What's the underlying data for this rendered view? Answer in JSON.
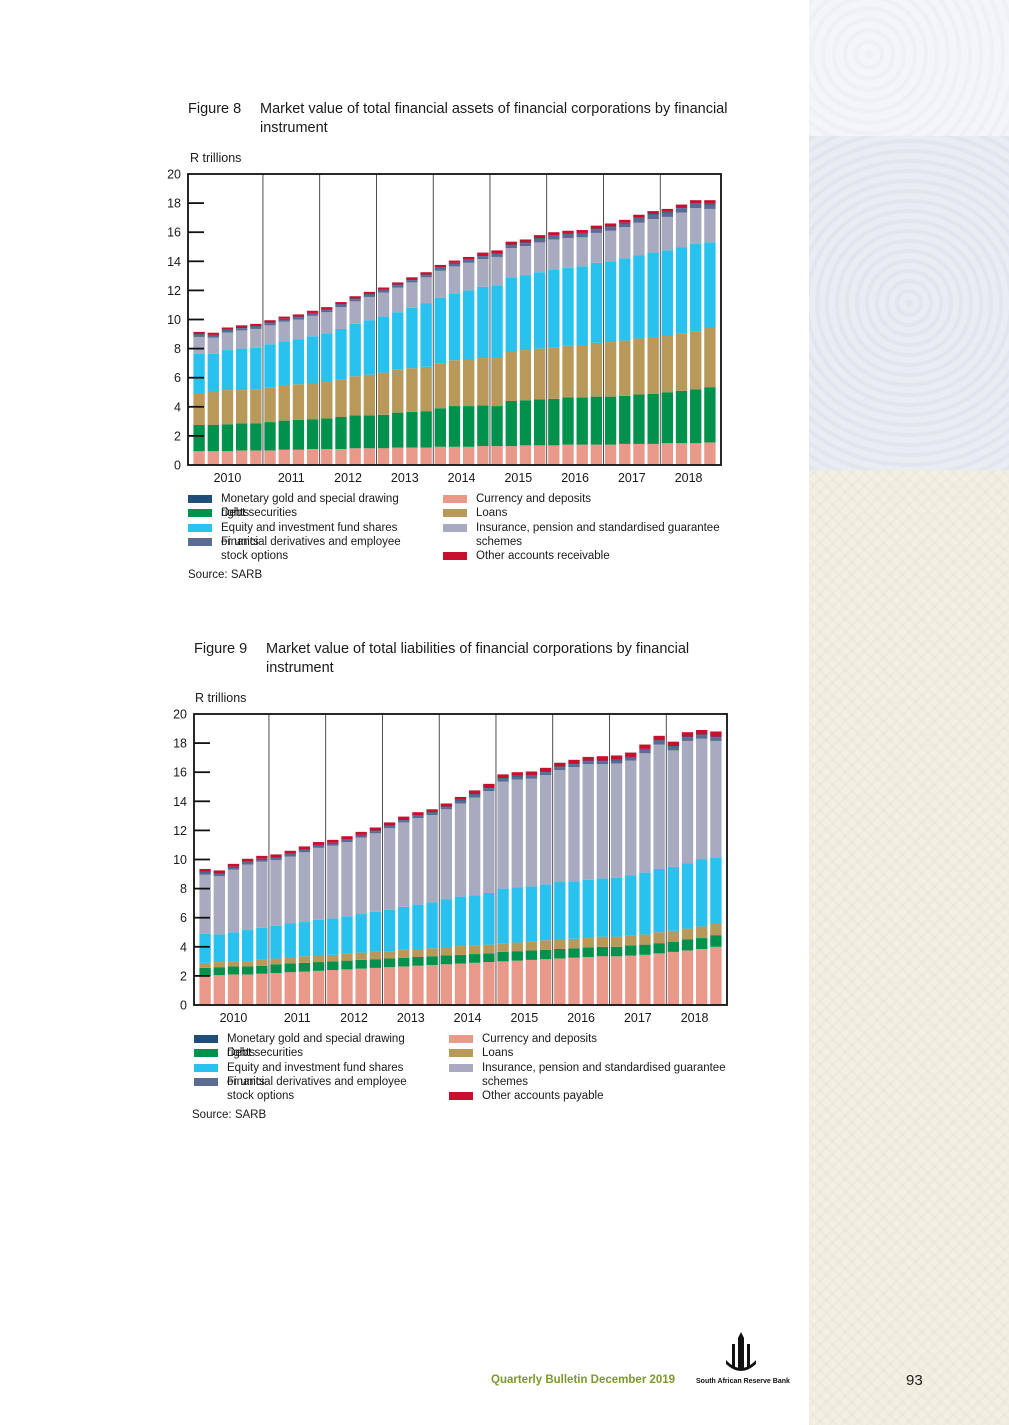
{
  "colors": {
    "monetary_gold": "#1f4e79",
    "debt": "#00914c",
    "equity": "#29c2ee",
    "derivatives": "#5b6b94",
    "currency": "#e8998a",
    "loans": "#b8995a",
    "insurance": "#a8aabf",
    "other": "#c8102e"
  },
  "chart_data": [
    {
      "type": "bar",
      "stacked": true,
      "title": "Market value of total financial assets of financial corporations by financial instrument",
      "figure_label": "Figure 8",
      "ylabel": "R trillions",
      "ylim": [
        0,
        20
      ],
      "yticks": [
        "0",
        "2",
        "4",
        "6",
        "8",
        "10",
        "12",
        "14",
        "16",
        "18",
        "20"
      ],
      "x_tick_labels": [
        "2010",
        "2011",
        "2012",
        "2013",
        "2014",
        "2015",
        "2016",
        "2017",
        "2018"
      ],
      "bars_per_year": 4,
      "legend": [
        {
          "label": "Monetary gold and special drawing rights",
          "color_key": "monetary_gold"
        },
        {
          "label": "Debt securities",
          "color_key": "debt"
        },
        {
          "label": "Equity and investment fund shares or units",
          "color_key": "equity"
        },
        {
          "label": "Financial  derivatives and employee stock options",
          "color_key": "derivatives"
        },
        {
          "label": "Currency and deposits",
          "color_key": "currency"
        },
        {
          "label": "Loans",
          "color_key": "loans"
        },
        {
          "label": "Insurance, pension and standardised guarantee schemes",
          "color_key": "insurance"
        },
        {
          "label": "Other accounts receivable",
          "color_key": "other"
        }
      ],
      "stack_order": [
        "currency",
        "debt",
        "loans",
        "equity",
        "insurance",
        "derivatives",
        "monetary_gold",
        "other"
      ],
      "series": [
        {
          "name": "Currency and deposits",
          "color_key": "currency",
          "values": [
            0.95,
            0.95,
            0.95,
            1.0,
            1.0,
            1.0,
            1.05,
            1.05,
            1.1,
            1.1,
            1.1,
            1.15,
            1.15,
            1.15,
            1.2,
            1.2,
            1.2,
            1.25,
            1.25,
            1.25,
            1.3,
            1.3,
            1.3,
            1.35,
            1.35,
            1.35,
            1.4,
            1.4,
            1.4,
            1.4,
            1.45,
            1.45,
            1.45,
            1.5,
            1.5,
            1.5,
            1.55
          ]
        },
        {
          "name": "Debt securities",
          "color_key": "debt",
          "values": [
            1.8,
            1.8,
            1.85,
            1.85,
            1.85,
            1.95,
            2.0,
            2.05,
            2.05,
            2.1,
            2.2,
            2.25,
            2.25,
            2.3,
            2.4,
            2.45,
            2.5,
            2.65,
            2.8,
            2.8,
            2.8,
            2.75,
            3.1,
            3.1,
            3.15,
            3.2,
            3.25,
            3.25,
            3.3,
            3.3,
            3.3,
            3.4,
            3.45,
            3.5,
            3.6,
            3.7,
            3.8
          ]
        },
        {
          "name": "Loans",
          "color_key": "loans",
          "values": [
            2.2,
            2.3,
            2.35,
            2.3,
            2.35,
            2.4,
            2.45,
            2.45,
            2.45,
            2.5,
            2.6,
            2.7,
            2.8,
            2.9,
            2.95,
            3.0,
            3.05,
            3.1,
            3.15,
            3.2,
            3.25,
            3.3,
            3.4,
            3.45,
            3.5,
            3.55,
            3.55,
            3.6,
            3.7,
            3.75,
            3.8,
            3.85,
            3.9,
            3.9,
            3.95,
            4.0,
            4.1
          ]
        },
        {
          "name": "Equity and investment fund shares or units",
          "color_key": "equity",
          "values": [
            2.7,
            2.6,
            2.75,
            2.85,
            2.85,
            2.95,
            3.0,
            3.1,
            3.25,
            3.35,
            3.45,
            3.6,
            3.75,
            3.85,
            3.95,
            4.15,
            4.35,
            4.5,
            4.6,
            4.75,
            4.9,
            5.0,
            5.1,
            5.15,
            5.25,
            5.35,
            5.35,
            5.4,
            5.5,
            5.55,
            5.65,
            5.7,
            5.8,
            5.85,
            5.9,
            6.0,
            5.85
          ]
        },
        {
          "name": "Insurance, pension and standardised guarantee schemes",
          "color_key": "insurance",
          "values": [
            1.15,
            1.1,
            1.2,
            1.25,
            1.3,
            1.3,
            1.35,
            1.35,
            1.4,
            1.45,
            1.5,
            1.55,
            1.6,
            1.65,
            1.7,
            1.75,
            1.8,
            1.85,
            1.85,
            1.9,
            1.9,
            1.95,
            2.0,
            2.0,
            2.05,
            2.05,
            2.05,
            2.0,
            2.05,
            2.1,
            2.15,
            2.25,
            2.3,
            2.3,
            2.4,
            2.45,
            2.3
          ]
        },
        {
          "name": "Financial  derivatives and employee stock options",
          "color_key": "derivatives",
          "values": [
            0.15,
            0.14,
            0.15,
            0.15,
            0.15,
            0.15,
            0.15,
            0.15,
            0.15,
            0.15,
            0.15,
            0.15,
            0.15,
            0.15,
            0.15,
            0.15,
            0.15,
            0.2,
            0.2,
            0.2,
            0.2,
            0.2,
            0.2,
            0.2,
            0.25,
            0.25,
            0.25,
            0.25,
            0.25,
            0.25,
            0.25,
            0.3,
            0.3,
            0.3,
            0.3,
            0.3,
            0.3
          ]
        },
        {
          "name": "Monetary gold and special drawing rights",
          "color_key": "monetary_gold",
          "values": [
            0.05,
            0.05,
            0.05,
            0.05,
            0.05,
            0.05,
            0.05,
            0.05,
            0.05,
            0.05,
            0.05,
            0.05,
            0.05,
            0.05,
            0.05,
            0.05,
            0.05,
            0.05,
            0.05,
            0.05,
            0.05,
            0.05,
            0.05,
            0.05,
            0.05,
            0.05,
            0.05,
            0.05,
            0.05,
            0.05,
            0.05,
            0.05,
            0.05,
            0.05,
            0.05,
            0.05,
            0.05
          ]
        },
        {
          "name": "Other accounts receivable",
          "color_key": "other",
          "values": [
            0.15,
            0.15,
            0.15,
            0.15,
            0.15,
            0.15,
            0.15,
            0.15,
            0.15,
            0.15,
            0.15,
            0.15,
            0.15,
            0.15,
            0.15,
            0.15,
            0.15,
            0.15,
            0.15,
            0.15,
            0.2,
            0.2,
            0.2,
            0.2,
            0.2,
            0.2,
            0.2,
            0.2,
            0.2,
            0.2,
            0.2,
            0.2,
            0.2,
            0.2,
            0.2,
            0.2,
            0.25
          ]
        }
      ],
      "source": "Source:  SARB"
    },
    {
      "type": "bar",
      "stacked": true,
      "title": "Market value of total liabilities of financial corporations by financial instrument",
      "figure_label": "Figure 9",
      "ylabel": "R trillions",
      "ylim": [
        0,
        20
      ],
      "yticks": [
        "0",
        "2",
        "4",
        "6",
        "8",
        "10",
        "12",
        "14",
        "16",
        "18",
        "20"
      ],
      "x_tick_labels": [
        "2010",
        "2011",
        "2012",
        "2013",
        "2014",
        "2015",
        "2016",
        "2017",
        "2018"
      ],
      "bars_per_year": 4,
      "legend": [
        {
          "label": "Monetary gold and special drawing rights",
          "color_key": "monetary_gold"
        },
        {
          "label": "Debt securities",
          "color_key": "debt"
        },
        {
          "label": "Equity and investment fund shares or units",
          "color_key": "equity"
        },
        {
          "label": "Financial  derivatives and employee stock options",
          "color_key": "derivatives"
        },
        {
          "label": "Currency and deposits",
          "color_key": "currency"
        },
        {
          "label": "Loans",
          "color_key": "loans"
        },
        {
          "label": "Insurance, pension and standardised guarantee schemes",
          "color_key": "insurance"
        },
        {
          "label": "Other accounts payable",
          "color_key": "other"
        }
      ],
      "stack_order": [
        "currency",
        "debt",
        "loans",
        "equity",
        "insurance",
        "derivatives",
        "monetary_gold",
        "other"
      ],
      "series": [
        {
          "name": "Currency and deposits",
          "color_key": "currency",
          "values": [
            2.0,
            2.05,
            2.1,
            2.1,
            2.15,
            2.2,
            2.25,
            2.3,
            2.35,
            2.4,
            2.45,
            2.5,
            2.55,
            2.6,
            2.65,
            2.7,
            2.75,
            2.8,
            2.85,
            2.9,
            2.95,
            3.0,
            3.05,
            3.1,
            3.15,
            3.2,
            3.25,
            3.3,
            3.35,
            3.35,
            3.4,
            3.45,
            3.55,
            3.65,
            3.75,
            3.85,
            4.0
          ]
        },
        {
          "name": "Debt securities",
          "color_key": "debt",
          "values": [
            0.55,
            0.55,
            0.55,
            0.55,
            0.55,
            0.6,
            0.6,
            0.6,
            0.6,
            0.6,
            0.6,
            0.6,
            0.6,
            0.6,
            0.6,
            0.6,
            0.6,
            0.6,
            0.6,
            0.6,
            0.6,
            0.65,
            0.65,
            0.65,
            0.65,
            0.65,
            0.65,
            0.65,
            0.65,
            0.65,
            0.7,
            0.7,
            0.7,
            0.7,
            0.75,
            0.75,
            0.8
          ]
        },
        {
          "name": "Loans",
          "color_key": "loans",
          "values": [
            0.35,
            0.35,
            0.35,
            0.35,
            0.4,
            0.4,
            0.45,
            0.45,
            0.45,
            0.45,
            0.5,
            0.5,
            0.5,
            0.5,
            0.55,
            0.55,
            0.55,
            0.55,
            0.6,
            0.6,
            0.6,
            0.6,
            0.6,
            0.6,
            0.65,
            0.65,
            0.65,
            0.65,
            0.7,
            0.7,
            0.7,
            0.7,
            0.75,
            0.75,
            0.75,
            0.8,
            0.8
          ]
        },
        {
          "name": "Equity and investment fund shares or units",
          "color_key": "equity",
          "values": [
            2.0,
            1.9,
            2.0,
            2.15,
            2.2,
            2.25,
            2.3,
            2.35,
            2.45,
            2.5,
            2.55,
            2.65,
            2.75,
            2.85,
            2.95,
            3.05,
            3.15,
            3.3,
            3.4,
            3.45,
            3.55,
            3.75,
            3.8,
            3.8,
            3.85,
            3.95,
            3.95,
            4.0,
            4.0,
            4.05,
            4.1,
            4.25,
            4.35,
            4.4,
            4.5,
            4.6,
            4.55
          ]
        },
        {
          "name": "Insurance, pension and standardised guarantee schemes",
          "color_key": "insurance",
          "values": [
            4.05,
            4.0,
            4.3,
            4.5,
            4.55,
            4.5,
            4.6,
            4.8,
            4.95,
            5.0,
            5.1,
            5.25,
            5.4,
            5.6,
            5.8,
            5.95,
            6.0,
            6.2,
            6.4,
            6.7,
            7.0,
            7.35,
            7.4,
            7.4,
            7.5,
            7.7,
            7.85,
            7.95,
            7.85,
            7.85,
            7.9,
            8.2,
            8.55,
            8.0,
            8.4,
            8.3,
            8.0
          ]
        },
        {
          "name": "Financial  derivatives and employee stock options",
          "color_key": "derivatives",
          "values": [
            0.15,
            0.15,
            0.15,
            0.15,
            0.15,
            0.15,
            0.15,
            0.15,
            0.15,
            0.15,
            0.15,
            0.15,
            0.15,
            0.15,
            0.15,
            0.15,
            0.15,
            0.15,
            0.2,
            0.2,
            0.2,
            0.2,
            0.2,
            0.2,
            0.2,
            0.2,
            0.2,
            0.2,
            0.2,
            0.2,
            0.2,
            0.25,
            0.25,
            0.25,
            0.25,
            0.25,
            0.25
          ]
        },
        {
          "name": "Monetary gold and special drawing rights",
          "color_key": "monetary_gold",
          "values": [
            0.05,
            0.05,
            0.05,
            0.05,
            0.05,
            0.05,
            0.05,
            0.05,
            0.05,
            0.05,
            0.05,
            0.05,
            0.05,
            0.05,
            0.05,
            0.05,
            0.05,
            0.05,
            0.05,
            0.05,
            0.05,
            0.05,
            0.05,
            0.05,
            0.05,
            0.05,
            0.05,
            0.05,
            0.05,
            0.05,
            0.05,
            0.05,
            0.05,
            0.05,
            0.05,
            0.05,
            0.05
          ]
        },
        {
          "name": "Other accounts payable",
          "color_key": "other",
          "values": [
            0.2,
            0.2,
            0.2,
            0.2,
            0.2,
            0.2,
            0.2,
            0.2,
            0.2,
            0.2,
            0.2,
            0.2,
            0.2,
            0.2,
            0.2,
            0.2,
            0.2,
            0.2,
            0.2,
            0.25,
            0.25,
            0.25,
            0.25,
            0.25,
            0.25,
            0.25,
            0.25,
            0.25,
            0.3,
            0.3,
            0.3,
            0.3,
            0.3,
            0.3,
            0.3,
            0.3,
            0.35
          ]
        }
      ],
      "source": "Source:  SARB"
    }
  ],
  "footer": {
    "publication": "Quarterly Bulletin December 2019",
    "bank_name": "South African Reserve Bank",
    "page_number": "93"
  }
}
